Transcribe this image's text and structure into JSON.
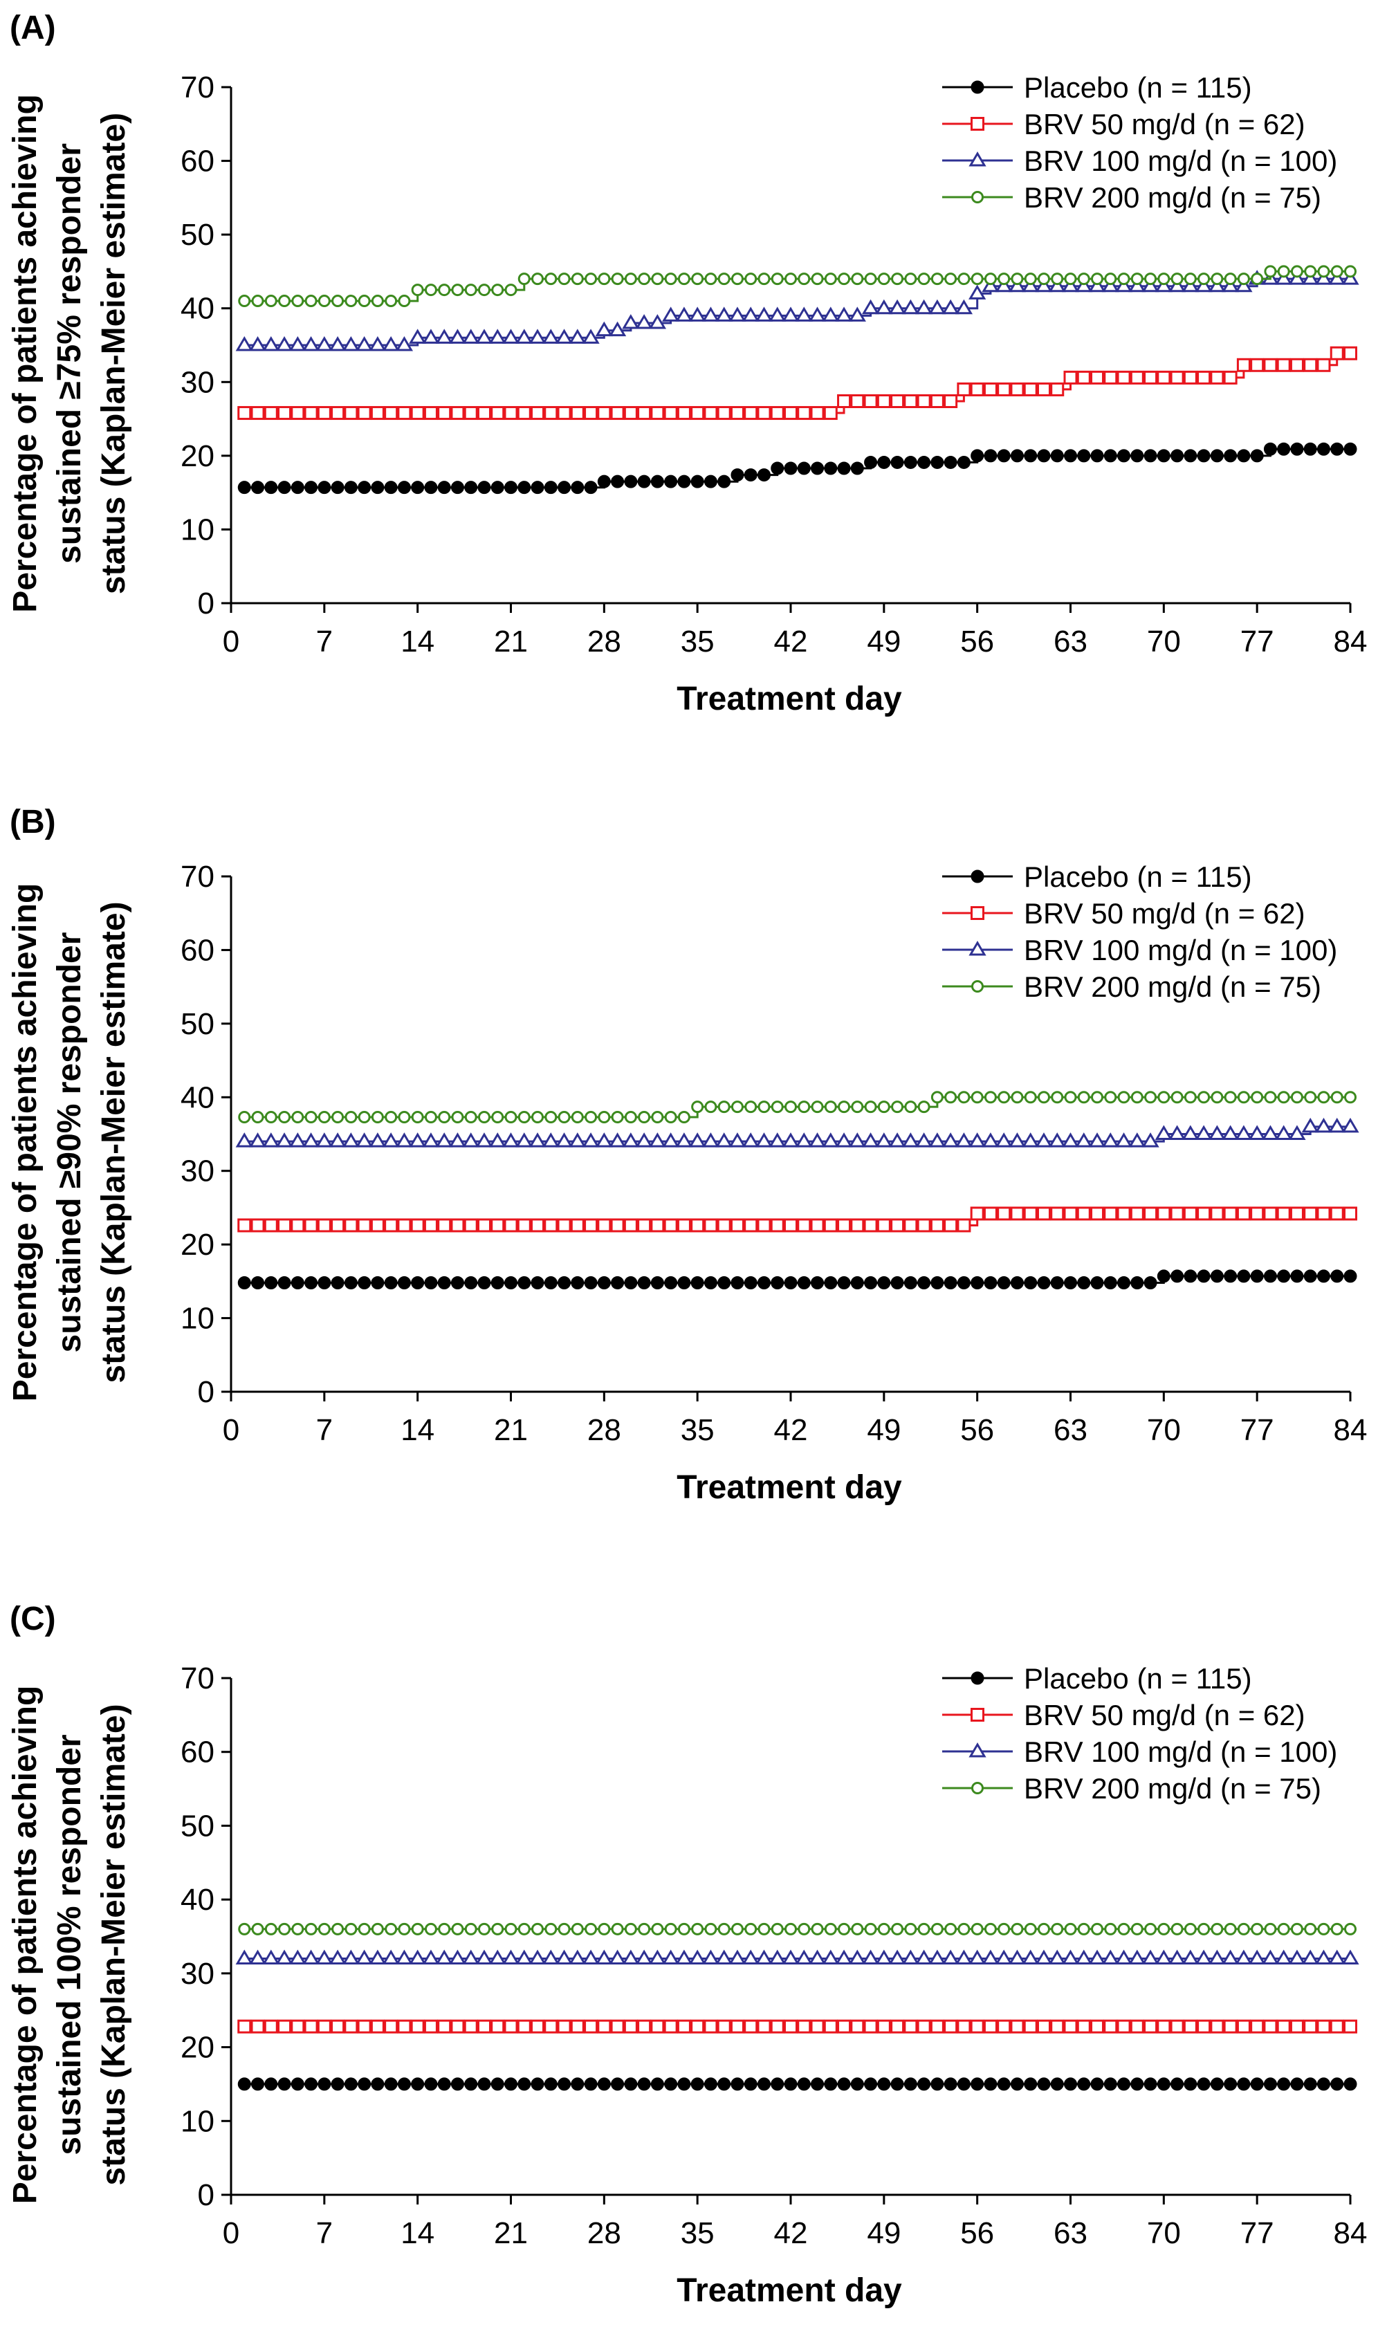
{
  "chart_data": [
    {
      "type": "line",
      "panel_label": "(A)",
      "xlabel": "Treatment day",
      "ylabel": [
        "Percentage of patients achieving",
        "sustained ≥75% responder",
        "status (Kaplan-Meier estimate)"
      ],
      "xlim": [
        0,
        84
      ],
      "ylim": [
        0,
        70
      ],
      "x_ticks": [
        0,
        7,
        14,
        21,
        28,
        35,
        42,
        49,
        56,
        63,
        70,
        77,
        84
      ],
      "y_ticks": [
        0,
        10,
        20,
        30,
        40,
        50,
        60,
        70
      ],
      "legend_position": "top-right",
      "series": [
        {
          "name": "Placebo (n = 115)",
          "color": "#000000",
          "marker": "filled-circle",
          "points": [
            [
              1,
              15.7
            ],
            [
              28,
              15.7
            ],
            [
              28,
              16.5
            ],
            [
              38,
              16.5
            ],
            [
              38,
              17.4
            ],
            [
              41,
              17.4
            ],
            [
              41,
              18.3
            ],
            [
              48,
              18.3
            ],
            [
              48,
              19.1
            ],
            [
              56,
              19.1
            ],
            [
              56,
              20
            ],
            [
              78,
              20
            ],
            [
              78,
              20.9
            ],
            [
              84,
              20.9
            ]
          ]
        },
        {
          "name": "BRV 50 mg/d (n = 62)",
          "color": "#e8161e",
          "marker": "open-square",
          "points": [
            [
              1,
              25.8
            ],
            [
              46,
              25.8
            ],
            [
              46,
              27.4
            ],
            [
              55,
              27.4
            ],
            [
              55,
              29
            ],
            [
              63,
              29
            ],
            [
              63,
              30.6
            ],
            [
              76,
              30.6
            ],
            [
              76,
              32.3
            ],
            [
              83,
              32.3
            ],
            [
              83,
              33.9
            ],
            [
              84,
              33.9
            ]
          ]
        },
        {
          "name": "BRV 100 mg/d (n = 100)",
          "color": "#2e3192",
          "marker": "open-triangle",
          "points": [
            [
              1,
              35
            ],
            [
              14,
              35
            ],
            [
              14,
              36
            ],
            [
              28,
              36
            ],
            [
              28,
              37
            ],
            [
              30,
              37
            ],
            [
              30,
              38
            ],
            [
              33,
              38
            ],
            [
              33,
              39
            ],
            [
              48,
              39
            ],
            [
              48,
              40
            ],
            [
              56,
              40
            ],
            [
              56,
              42
            ],
            [
              57,
              42
            ],
            [
              57,
              43
            ],
            [
              77,
              43
            ],
            [
              77,
              44
            ],
            [
              84,
              44
            ]
          ]
        },
        {
          "name": "BRV 200 mg/d (n = 75)",
          "color": "#3c8a1e",
          "marker": "open-circle",
          "points": [
            [
              1,
              41
            ],
            [
              14,
              41
            ],
            [
              14,
              42.5
            ],
            [
              22,
              42.5
            ],
            [
              22,
              44
            ],
            [
              78,
              44
            ],
            [
              78,
              45
            ],
            [
              84,
              45
            ]
          ]
        }
      ]
    },
    {
      "type": "line",
      "panel_label": "(B)",
      "xlabel": "Treatment day",
      "ylabel": [
        "Percentage of patients achieving",
        "sustained ≥90% responder",
        "status (Kaplan-Meier estimate)"
      ],
      "xlim": [
        0,
        84
      ],
      "ylim": [
        0,
        70
      ],
      "x_ticks": [
        0,
        7,
        14,
        21,
        28,
        35,
        42,
        49,
        56,
        63,
        70,
        77,
        84
      ],
      "y_ticks": [
        0,
        10,
        20,
        30,
        40,
        50,
        60,
        70
      ],
      "legend_position": "top-right",
      "series": [
        {
          "name": "Placebo (n = 115)",
          "color": "#000000",
          "marker": "filled-circle",
          "points": [
            [
              1,
              14.8
            ],
            [
              70,
              14.8
            ],
            [
              70,
              15.7
            ],
            [
              84,
              15.7
            ]
          ]
        },
        {
          "name": "BRV 50 mg/d (n = 62)",
          "color": "#e8161e",
          "marker": "open-square",
          "points": [
            [
              1,
              22.6
            ],
            [
              56,
              22.6
            ],
            [
              56,
              24.2
            ],
            [
              84,
              24.2
            ]
          ]
        },
        {
          "name": "BRV 100 mg/d (n = 100)",
          "color": "#2e3192",
          "marker": "open-triangle",
          "points": [
            [
              1,
              34
            ],
            [
              70,
              34
            ],
            [
              70,
              35
            ],
            [
              81,
              35
            ],
            [
              81,
              36
            ],
            [
              84,
              36
            ]
          ]
        },
        {
          "name": "BRV 200 mg/d (n = 75)",
          "color": "#3c8a1e",
          "marker": "open-circle",
          "points": [
            [
              1,
              37.3
            ],
            [
              35,
              37.3
            ],
            [
              35,
              38.7
            ],
            [
              53,
              38.7
            ],
            [
              53,
              40
            ],
            [
              84,
              40
            ]
          ]
        }
      ]
    },
    {
      "type": "line",
      "panel_label": "(C)",
      "xlabel": "Treatment day",
      "ylabel": [
        "Percentage of patients achieving",
        "sustained 100% responder",
        "status (Kaplan-Meier estimate)"
      ],
      "xlim": [
        0,
        84
      ],
      "ylim": [
        0,
        70
      ],
      "x_ticks": [
        0,
        7,
        14,
        21,
        28,
        35,
        42,
        49,
        56,
        63,
        70,
        77,
        84
      ],
      "y_ticks": [
        0,
        10,
        20,
        30,
        40,
        50,
        60,
        70
      ],
      "legend_position": "top-right",
      "series": [
        {
          "name": "Placebo (n = 115)",
          "color": "#000000",
          "marker": "filled-circle",
          "points": [
            [
              1,
              15
            ],
            [
              84,
              15
            ]
          ]
        },
        {
          "name": "BRV 50 mg/d (n = 62)",
          "color": "#e8161e",
          "marker": "open-square",
          "points": [
            [
              1,
              22.8
            ],
            [
              84,
              22.8
            ]
          ]
        },
        {
          "name": "BRV 100 mg/d (n = 100)",
          "color": "#2e3192",
          "marker": "open-triangle",
          "points": [
            [
              1,
              32
            ],
            [
              84,
              32
            ]
          ]
        },
        {
          "name": "BRV 200 mg/d (n = 75)",
          "color": "#3c8a1e",
          "marker": "open-circle",
          "points": [
            [
              1,
              36
            ],
            [
              84,
              36
            ]
          ]
        }
      ]
    }
  ]
}
